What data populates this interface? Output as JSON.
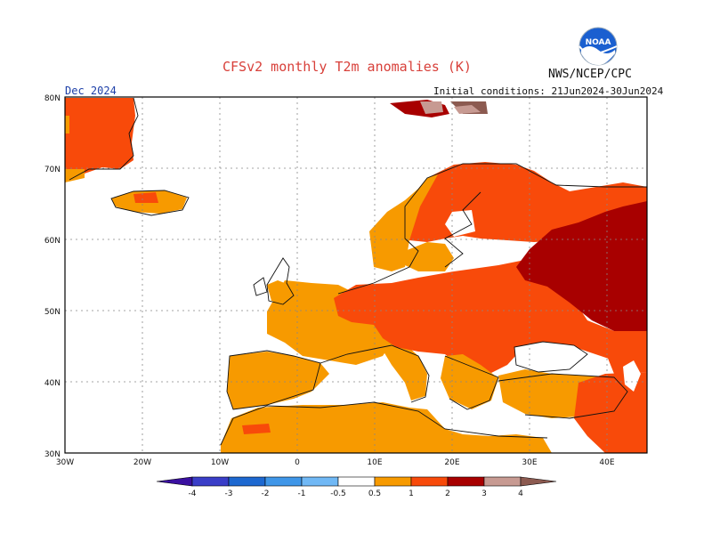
{
  "title": "CFSv2 monthly T2m anomalies (K)",
  "organization": "NWS/NCEP/CPC",
  "logo_text": "NOAA",
  "target_month": "Dec 2024",
  "initial_conditions": "Initial conditions: 21Jun2024-30Jun2024",
  "map": {
    "lon_range": [
      -30,
      45
    ],
    "lat_range": [
      30,
      80
    ],
    "lon_ticks": [
      "30W",
      "20W",
      "10W",
      "0",
      "10E",
      "20E",
      "30E",
      "40E"
    ],
    "lat_ticks": [
      "80N",
      "70N",
      "60N",
      "50N",
      "40N",
      "30N"
    ],
    "grid": true
  },
  "colorbar": {
    "labels": [
      "-4",
      "-3",
      "-2",
      "-1",
      "-0.5",
      "0.5",
      "1",
      "2",
      "3",
      "4"
    ],
    "colors": [
      "#3a10a0",
      "#3a3ec8",
      "#1d68d0",
      "#3f96e8",
      "#70b8f5",
      "#ffffff",
      "#f79a00",
      "#f84a0a",
      "#a80000",
      "#c79a92",
      "#8c5a50"
    ]
  },
  "anomaly_colors": {
    "0.5-1": "#f79a00",
    "1-2": "#f84a0a",
    "2-3": "#a80000",
    "3-4": "#c79a92",
    "4+": "#8c5a50"
  }
}
